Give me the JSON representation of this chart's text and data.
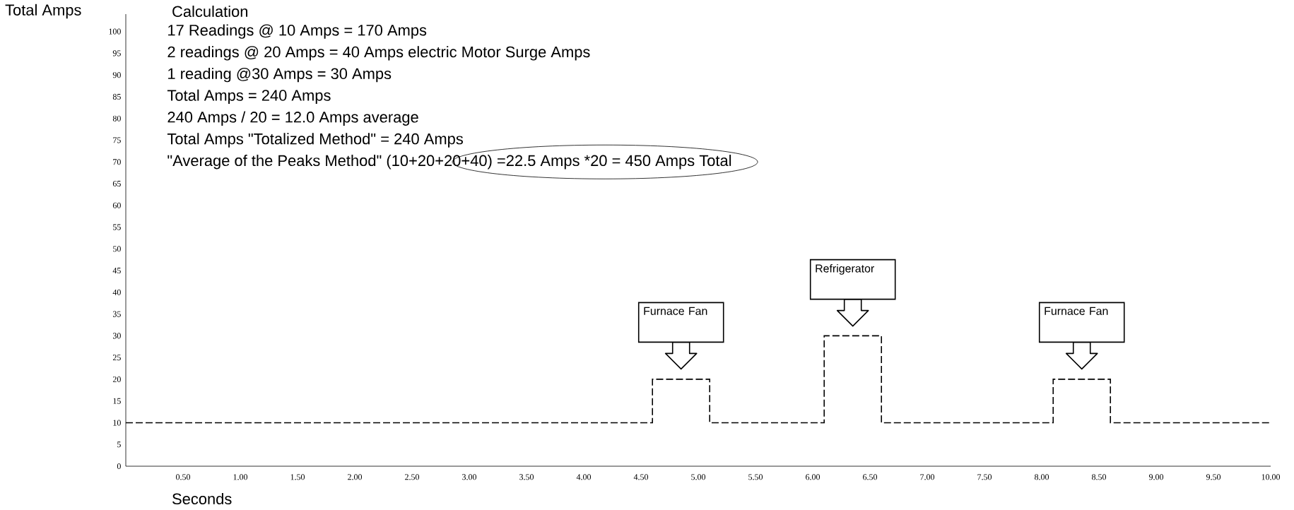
{
  "chart_data": {
    "type": "step",
    "title": "Calculation",
    "xlabel": "Seconds",
    "ylabel": "Total Amps",
    "x": [
      0,
      4.6,
      5.1,
      6.1,
      6.6,
      8.1,
      8.6,
      10
    ],
    "values": [
      10,
      20,
      10,
      30,
      10,
      20,
      10,
      10
    ],
    "color": "#000000",
    "line_style": "dashed",
    "xlim": [
      0,
      10
    ],
    "ylim": [
      0,
      104
    ],
    "xticks": [
      {
        "value": 0.5,
        "label": "0.50"
      },
      {
        "value": 1,
        "label": "1.00"
      },
      {
        "value": 1.5,
        "label": "1.50"
      },
      {
        "value": 2,
        "label": "2.00"
      },
      {
        "value": 2.5,
        "label": "2.50"
      },
      {
        "value": 3,
        "label": "3.00"
      },
      {
        "value": 3.5,
        "label": "3.50"
      },
      {
        "value": 4,
        "label": "4.00"
      },
      {
        "value": 4.5,
        "label": "4.50"
      },
      {
        "value": 5,
        "label": "5.00"
      },
      {
        "value": 5.5,
        "label": "5.50"
      },
      {
        "value": 6,
        "label": "6.00"
      },
      {
        "value": 6.5,
        "label": "6.50"
      },
      {
        "value": 7,
        "label": "7.00"
      },
      {
        "value": 7.5,
        "label": "7.50"
      },
      {
        "value": 8,
        "label": "8.00"
      },
      {
        "value": 8.5,
        "label": "8.50"
      },
      {
        "value": 9,
        "label": "9.00"
      },
      {
        "value": 9.5,
        "label": "9.50"
      },
      {
        "value": 10,
        "label": "10.00"
      }
    ],
    "yticks": [
      0,
      5,
      10,
      15,
      20,
      25,
      30,
      35,
      40,
      45,
      50,
      55,
      60,
      65,
      70,
      75,
      80,
      85,
      90,
      95,
      100
    ],
    "annotations": [
      "17 Readings @ 10 Amps = 170 Amps",
      "2 readings @ 20 Amps = 40 Amps electric Motor Surge Amps",
      "1 reading @30 Amps = 30 Amps",
      "Total Amps = 240 Amps",
      "240 Amps / 20 = 12.0 Amps average",
      "Total Amps \"Totalized Method\" = 240 Amps",
      "\"Average of the Peaks Method\" (10+20+20+40) =22.5 Amps *20 = 450 Amps Total",
      "Furnace Fan",
      "Refrigerator",
      "Furnace Fan"
    ]
  }
}
